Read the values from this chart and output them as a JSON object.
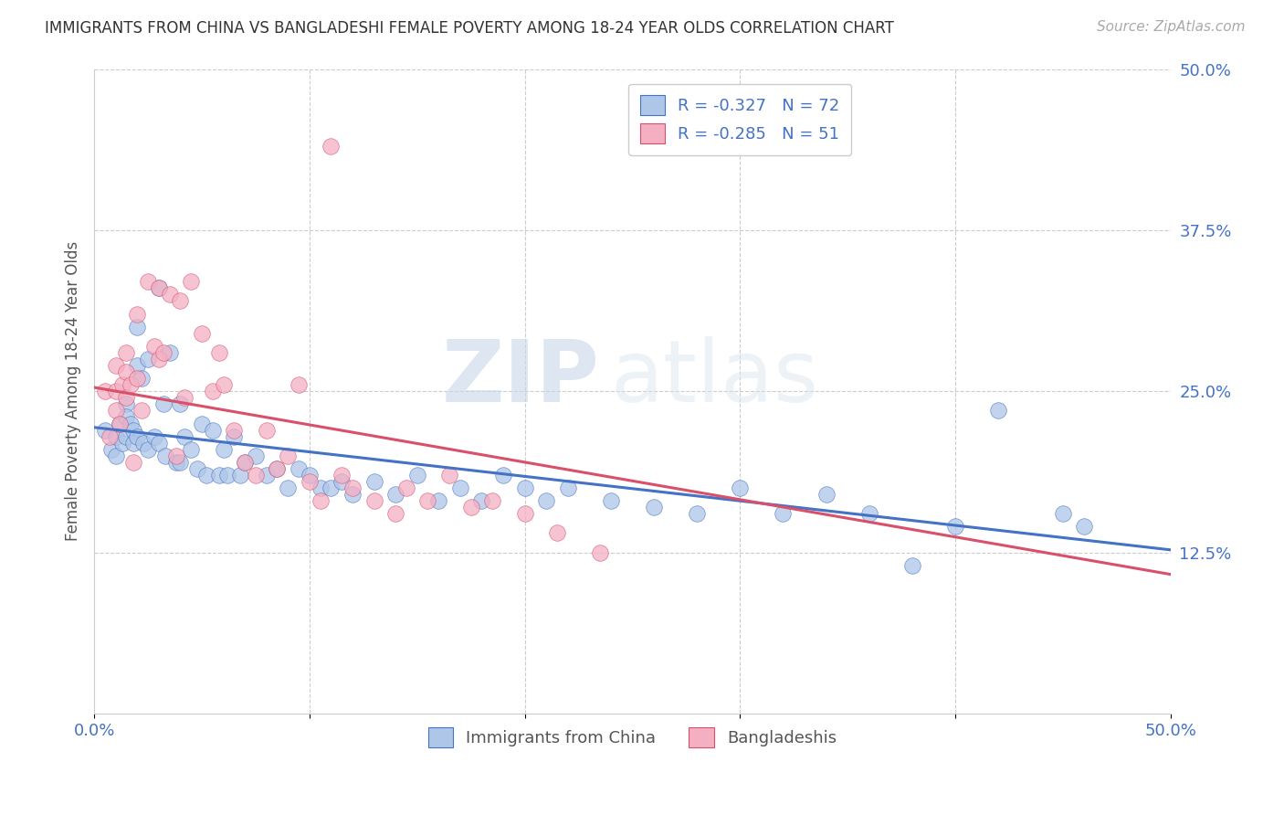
{
  "title": "IMMIGRANTS FROM CHINA VS BANGLADESHI FEMALE POVERTY AMONG 18-24 YEAR OLDS CORRELATION CHART",
  "source": "Source: ZipAtlas.com",
  "ylabel": "Female Poverty Among 18-24 Year Olds",
  "xlim": [
    0.0,
    0.5
  ],
  "ylim": [
    0.0,
    0.5
  ],
  "background_color": "#ffffff",
  "watermark_zip": "ZIP",
  "watermark_atlas": "atlas",
  "china_color": "#aec6e8",
  "bangladesh_color": "#f4afc3",
  "china_line_color": "#4472c4",
  "bangladesh_line_color": "#d9506a",
  "china_R": -0.327,
  "china_N": 72,
  "bangladesh_R": -0.285,
  "bangladesh_N": 51,
  "china_line_x0": 0.0,
  "china_line_y0": 0.222,
  "china_line_x1": 0.5,
  "china_line_y1": 0.127,
  "bangla_line_x0": 0.0,
  "bangla_line_y0": 0.253,
  "bangla_line_x1": 0.5,
  "bangla_line_y1": 0.108,
  "china_x": [
    0.005,
    0.008,
    0.01,
    0.01,
    0.012,
    0.013,
    0.015,
    0.015,
    0.015,
    0.017,
    0.018,
    0.018,
    0.02,
    0.02,
    0.02,
    0.022,
    0.023,
    0.025,
    0.025,
    0.028,
    0.03,
    0.03,
    0.032,
    0.033,
    0.035,
    0.038,
    0.04,
    0.04,
    0.042,
    0.045,
    0.048,
    0.05,
    0.052,
    0.055,
    0.058,
    0.06,
    0.062,
    0.065,
    0.068,
    0.07,
    0.075,
    0.08,
    0.085,
    0.09,
    0.095,
    0.1,
    0.105,
    0.11,
    0.115,
    0.12,
    0.13,
    0.14,
    0.15,
    0.16,
    0.17,
    0.18,
    0.19,
    0.2,
    0.21,
    0.22,
    0.24,
    0.26,
    0.28,
    0.3,
    0.32,
    0.34,
    0.36,
    0.38,
    0.4,
    0.42,
    0.45,
    0.46
  ],
  "china_y": [
    0.22,
    0.205,
    0.215,
    0.2,
    0.225,
    0.21,
    0.24,
    0.23,
    0.215,
    0.225,
    0.22,
    0.21,
    0.3,
    0.27,
    0.215,
    0.26,
    0.21,
    0.275,
    0.205,
    0.215,
    0.33,
    0.21,
    0.24,
    0.2,
    0.28,
    0.195,
    0.24,
    0.195,
    0.215,
    0.205,
    0.19,
    0.225,
    0.185,
    0.22,
    0.185,
    0.205,
    0.185,
    0.215,
    0.185,
    0.195,
    0.2,
    0.185,
    0.19,
    0.175,
    0.19,
    0.185,
    0.175,
    0.175,
    0.18,
    0.17,
    0.18,
    0.17,
    0.185,
    0.165,
    0.175,
    0.165,
    0.185,
    0.175,
    0.165,
    0.175,
    0.165,
    0.16,
    0.155,
    0.175,
    0.155,
    0.17,
    0.155,
    0.115,
    0.145,
    0.235,
    0.155,
    0.145
  ],
  "bangla_x": [
    0.005,
    0.007,
    0.01,
    0.01,
    0.01,
    0.012,
    0.013,
    0.015,
    0.015,
    0.015,
    0.017,
    0.018,
    0.02,
    0.02,
    0.022,
    0.025,
    0.028,
    0.03,
    0.03,
    0.032,
    0.035,
    0.038,
    0.04,
    0.042,
    0.045,
    0.05,
    0.055,
    0.058,
    0.06,
    0.065,
    0.07,
    0.075,
    0.08,
    0.085,
    0.09,
    0.095,
    0.1,
    0.105,
    0.11,
    0.115,
    0.12,
    0.13,
    0.14,
    0.145,
    0.155,
    0.165,
    0.175,
    0.185,
    0.2,
    0.215,
    0.235
  ],
  "bangla_y": [
    0.25,
    0.215,
    0.27,
    0.25,
    0.235,
    0.225,
    0.255,
    0.28,
    0.265,
    0.245,
    0.255,
    0.195,
    0.31,
    0.26,
    0.235,
    0.335,
    0.285,
    0.33,
    0.275,
    0.28,
    0.325,
    0.2,
    0.32,
    0.245,
    0.335,
    0.295,
    0.25,
    0.28,
    0.255,
    0.22,
    0.195,
    0.185,
    0.22,
    0.19,
    0.2,
    0.255,
    0.18,
    0.165,
    0.44,
    0.185,
    0.175,
    0.165,
    0.155,
    0.175,
    0.165,
    0.185,
    0.16,
    0.165,
    0.155,
    0.14,
    0.125
  ]
}
